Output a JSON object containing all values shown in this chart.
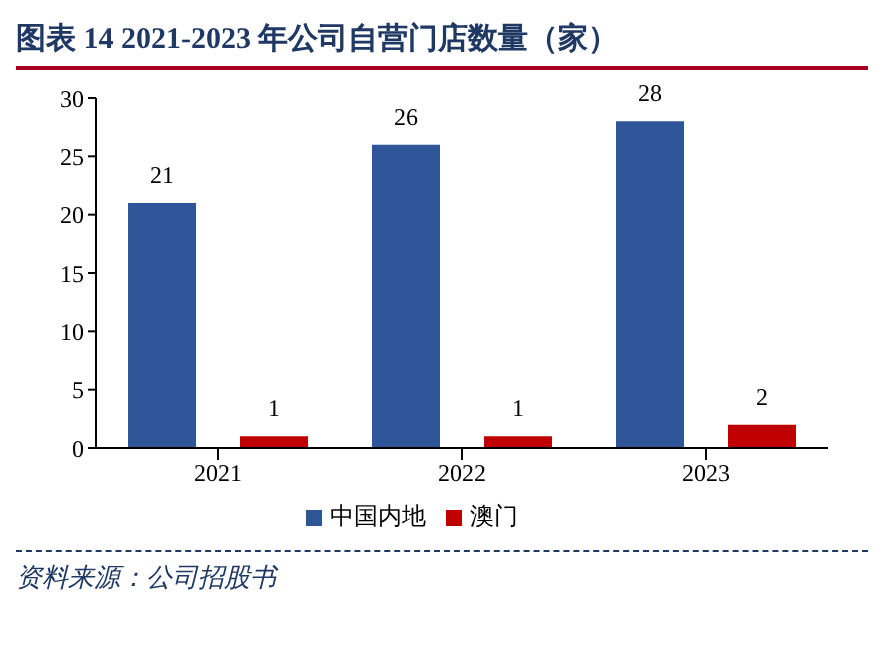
{
  "chart_data": {
    "type": "bar",
    "title": "图表 14   2021-2023 年公司自营门店数量（家）",
    "categories": [
      "2021",
      "2022",
      "2023"
    ],
    "series": [
      {
        "name": "中国内地",
        "color": "#2e5597",
        "values": [
          21,
          26,
          28
        ]
      },
      {
        "name": "澳门",
        "color": "#c00000",
        "values": [
          1,
          1,
          2
        ]
      }
    ],
    "ylim": [
      0,
      30
    ],
    "yticks": [
      0,
      5,
      10,
      15,
      20,
      25,
      30
    ],
    "grid": false,
    "legend": "bottom",
    "data_labels": true,
    "annotations": [
      "资料来源：公司招股书"
    ]
  }
}
